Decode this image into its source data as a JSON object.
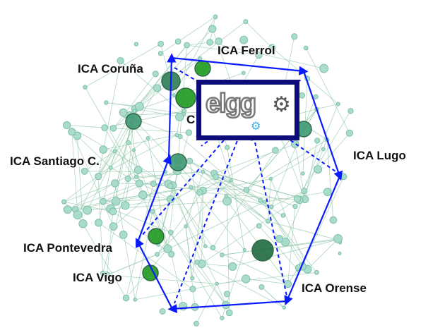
{
  "labels": {
    "ferrol": "ICA Ferrol",
    "coruna": "ICA Coruña",
    "santiago": "ICA Santiago C.",
    "lugo": "ICA Lugo",
    "pontevedra": "ICA Pontevedra",
    "vigo": "ICA Vigo",
    "orense": "ICA Orense",
    "hidden": "C"
  },
  "logo": {
    "text": "elgg",
    "icon": "gear-icon"
  },
  "colors": {
    "polygon": "#0a1aff",
    "hub_border": "#0d0d7a",
    "network_edge": "#8fc4a8",
    "node_light": "#a9dccb",
    "node_dark": "#2e7d57",
    "node_green": "#1e9a1e"
  }
}
